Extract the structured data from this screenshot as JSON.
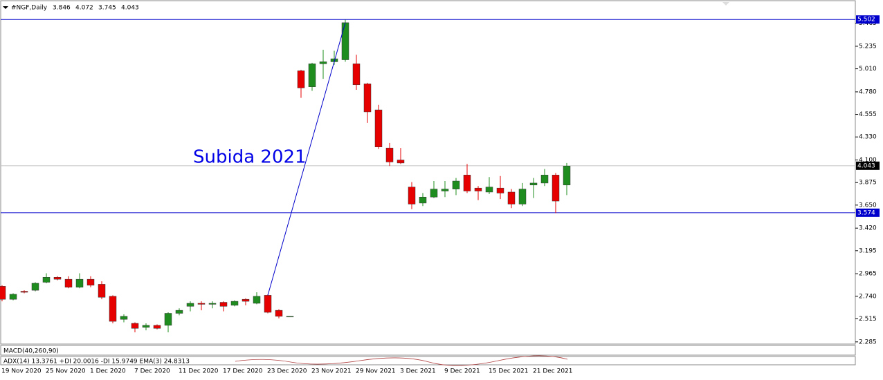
{
  "chart_data": {
    "type": "candlestick",
    "title": "#NGF,Daily",
    "header_values": [
      3.846,
      4.072,
      3.745,
      4.043
    ],
    "annotation": "Subida 2021",
    "indicator_labels": [
      "MACD(40,260,90)",
      "ADX(14) 13.3761 +DI 20.0016 -DI 15.9749 EMA(3) 24.8313"
    ],
    "categories": [
      "19 Nov 2020",
      null,
      null,
      null,
      "25 Nov 2020",
      null,
      null,
      null,
      "1 Dec 2020",
      null,
      null,
      null,
      "7 Dec 2020",
      null,
      null,
      null,
      "11 Dec 2020",
      null,
      null,
      null,
      "17 Dec 2020",
      null,
      null,
      null,
      "23 Dec 2020",
      null,
      null,
      null,
      "23 Nov 2021",
      null,
      null,
      null,
      "29 Nov 2021",
      null,
      null,
      null,
      "3 Dec 2021",
      null,
      null,
      null,
      "9 Dec 2021",
      null,
      null,
      null,
      "15 Dec 2021",
      null,
      null,
      null,
      "21 Dec 2021",
      null,
      null,
      null
    ],
    "open": [
      2.84,
      2.71,
      2.79,
      2.8,
      2.88,
      2.93,
      2.91,
      2.83,
      2.91,
      2.86,
      2.74,
      2.51,
      2.47,
      2.43,
      2.45,
      2.45,
      2.57,
      2.64,
      2.67,
      2.66,
      2.68,
      2.65,
      2.71,
      2.67,
      2.75,
      2.6,
      2.54,
      4.99,
      4.83,
      5.06,
      5.08,
      5.1,
      5.06,
      4.86,
      4.6,
      4.22,
      4.1,
      3.83,
      3.67,
      3.73,
      3.79,
      3.81,
      3.95,
      3.82,
      3.78,
      3.82,
      3.78,
      3.66,
      3.85,
      3.87,
      3.95,
      3.85
    ],
    "high": [
      2.85,
      2.77,
      2.8,
      2.88,
      2.97,
      2.94,
      2.94,
      2.97,
      2.94,
      2.89,
      2.75,
      2.56,
      2.48,
      2.47,
      2.46,
      2.58,
      2.62,
      2.69,
      2.69,
      2.69,
      2.69,
      2.7,
      2.72,
      2.78,
      2.76,
      2.61,
      2.54,
      5.0,
      5.07,
      5.2,
      5.19,
      5.5,
      5.15,
      4.87,
      4.65,
      4.27,
      4.22,
      3.88,
      3.77,
      3.89,
      3.89,
      3.92,
      4.06,
      3.84,
      3.93,
      3.94,
      3.81,
      3.87,
      3.92,
      4.01,
      3.97,
      4.07
    ],
    "low": [
      2.69,
      2.7,
      2.77,
      2.79,
      2.87,
      2.9,
      2.82,
      2.82,
      2.83,
      2.71,
      2.47,
      2.48,
      2.38,
      2.4,
      2.41,
      2.38,
      2.55,
      2.59,
      2.6,
      2.62,
      2.59,
      2.64,
      2.65,
      2.66,
      2.57,
      2.52,
      2.54,
      4.72,
      4.79,
      4.91,
      5.05,
      5.08,
      4.8,
      4.47,
      4.21,
      4.04,
      4.06,
      3.61,
      3.64,
      3.72,
      3.73,
      3.75,
      3.77,
      3.7,
      3.76,
      3.71,
      3.62,
      3.64,
      3.72,
      3.84,
      3.57,
      3.75
    ],
    "close": [
      2.71,
      2.76,
      2.78,
      2.87,
      2.93,
      2.91,
      2.83,
      2.91,
      2.85,
      2.73,
      2.49,
      2.54,
      2.42,
      2.45,
      2.42,
      2.57,
      2.6,
      2.67,
      2.66,
      2.67,
      2.64,
      2.69,
      2.69,
      2.74,
      2.58,
      2.54,
      2.54,
      4.82,
      5.06,
      5.08,
      5.11,
      5.47,
      4.85,
      4.58,
      4.23,
      4.08,
      4.07,
      3.66,
      3.73,
      3.81,
      3.81,
      3.89,
      3.79,
      3.79,
      3.83,
      3.77,
      3.66,
      3.81,
      3.87,
      3.95,
      3.69,
      4.04
    ],
    "up_color": "#1e8c1e",
    "down_color": "#e60000",
    "line_color": "#0000cc",
    "hlines": [
      5.502,
      3.574
    ],
    "last_price": 4.043,
    "trendline": {
      "y": [
        2.75,
        5.47
      ]
    },
    "ylim": [
      2.27,
      5.6
    ],
    "yticks": [
      5.465,
      5.235,
      {
        "value": 5.01,
        "label": "5.010"
      },
      {
        "value": 4.78,
        "label": "4.780"
      },
      4.555,
      {
        "value": 4.33,
        "label": "4.330"
      },
      {
        "value": 4.1,
        "label": "4.100"
      },
      3.875,
      {
        "value": 3.65,
        "label": "3.650"
      },
      {
        "value": 3.42,
        "label": "3.420"
      },
      3.195,
      2.965,
      {
        "value": 2.74,
        "label": "2.740"
      },
      2.515,
      2.285
    ],
    "grid": false
  }
}
